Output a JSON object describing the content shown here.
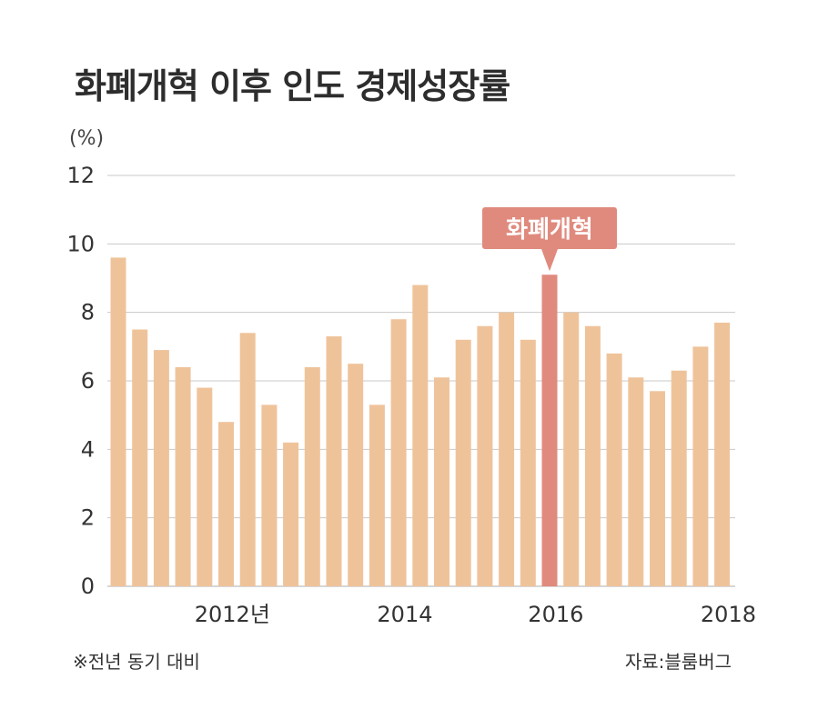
{
  "title": "화폐개혁 이후 인도 경제성장률",
  "unit": "(%)",
  "footnote": "※전년 동기 대비",
  "source": "자료:블룸버그",
  "colors": {
    "bar": "#efc39a",
    "highlight": "#e08a7e",
    "grid": "#c9c9c9"
  },
  "chart_data": {
    "type": "bar",
    "title": "화폐개혁 이후 인도 경제성장률",
    "ylabel": "(%)",
    "ylim": [
      0,
      12
    ],
    "yticks": [
      "0",
      "2",
      "4",
      "6",
      "8",
      "10",
      "12"
    ],
    "xtick_labels": [
      "2012년",
      "2014",
      "2016",
      "2018"
    ],
    "grid": true,
    "values": [
      9.6,
      7.5,
      6.9,
      6.4,
      5.8,
      4.8,
      7.4,
      5.3,
      4.2,
      6.4,
      7.3,
      6.5,
      5.3,
      7.8,
      8.8,
      6.1,
      7.2,
      7.6,
      8.0,
      7.2,
      9.1,
      8.0,
      7.6,
      6.8,
      6.1,
      5.7,
      6.3,
      7.0,
      7.7
    ],
    "highlight_index": 20,
    "annotation": "화폐개혁"
  }
}
